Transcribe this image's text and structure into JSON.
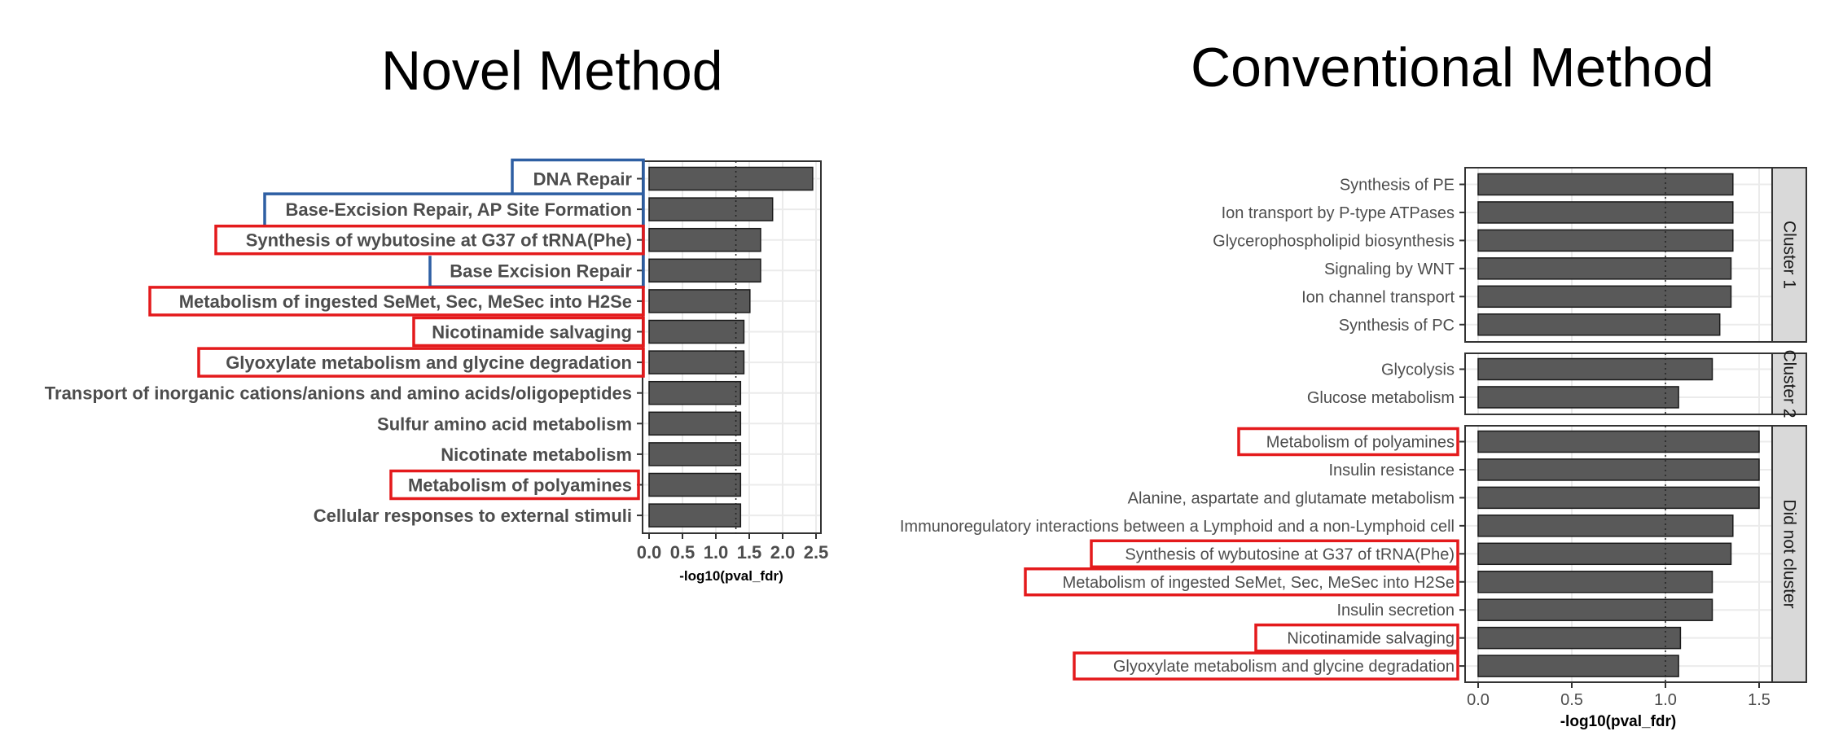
{
  "panels": {
    "left_title": "Novel Method",
    "right_title": "Conventional Method"
  },
  "chart_data": [
    {
      "type": "bar",
      "orientation": "horizontal",
      "title": "Novel Method",
      "xlabel": "-log10(pval_fdr)",
      "ylabel": "",
      "xlim": [
        0,
        2.6
      ],
      "xticks": [
        "0.0",
        "0.5",
        "1.0",
        "1.5",
        "2.0",
        "2.5"
      ],
      "reference_line": 1.3,
      "grid": true,
      "label_style": "bold",
      "categories": [
        "DNA Repair",
        "Base-Excision Repair, AP Site Formation",
        "Synthesis of wybutosine at G37 of tRNA(Phe)",
        "Base Excision Repair",
        "Metabolism of ingested SeMet, Sec, MeSec into H2Se",
        "Nicotinamide salvaging",
        "Glyoxylate metabolism and glycine degradation",
        "Transport of inorganic cations/anions and amino acids/oligopeptides",
        "Sulfur amino acid metabolism",
        "Nicotinate metabolism",
        "Metabolism of polyamines",
        "Cellular responses to external stimuli"
      ],
      "values": [
        2.45,
        1.85,
        1.67,
        1.67,
        1.51,
        1.42,
        1.42,
        1.37,
        1.37,
        1.37,
        1.37,
        1.37
      ],
      "highlights": {
        "red_boxes": [
          "Synthesis of wybutosine at G37 of tRNA(Phe)",
          "Metabolism of ingested SeMet, Sec, MeSec into H2Se",
          "Nicotinamide salvaging",
          "Glyoxylate metabolism and glycine degradation",
          "Metabolism of polyamines"
        ],
        "blue_boxes": [
          "DNA Repair",
          "Base-Excision Repair, AP Site Formation",
          "Base Excision Repair"
        ]
      }
    },
    {
      "type": "bar",
      "orientation": "horizontal",
      "title": "Conventional Method",
      "xlabel": "-log10(pval_fdr)",
      "ylabel": "",
      "xlim": [
        -0.07,
        1.58
      ],
      "xticks": [
        "0.0",
        "0.5",
        "1.0",
        "1.5"
      ],
      "reference_line": 1.0,
      "grid": true,
      "label_style": "normal",
      "facets": [
        {
          "name": "Cluster 1",
          "categories": [
            "Synthesis of PE",
            "Ion transport by P-type ATPases",
            "Glycerophospholipid biosynthesis",
            "Signaling by WNT",
            "Ion channel transport",
            "Synthesis of PC"
          ],
          "values": [
            1.36,
            1.36,
            1.36,
            1.35,
            1.35,
            1.29
          ]
        },
        {
          "name": "Cluster 2",
          "categories": [
            "Glycolysis",
            "Glucose metabolism"
          ],
          "values": [
            1.25,
            1.07
          ]
        },
        {
          "name": "Did not cluster",
          "categories": [
            "Metabolism of polyamines",
            "Insulin resistance",
            "Alanine, aspartate and glutamate metabolism",
            "Immunoregulatory interactions between a Lymphoid and a non-Lymphoid cell",
            "Synthesis of wybutosine at G37 of tRNA(Phe)",
            "Metabolism of ingested SeMet, Sec, MeSec into H2Se",
            "Insulin secretion",
            "Nicotinamide salvaging",
            "Glyoxylate metabolism and glycine degradation"
          ],
          "values": [
            1.5,
            1.5,
            1.5,
            1.36,
            1.35,
            1.25,
            1.25,
            1.08,
            1.07
          ]
        }
      ],
      "highlights": {
        "red_boxes": [
          "Metabolism of polyamines",
          "Synthesis of wybutosine at G37 of tRNA(Phe)",
          "Metabolism of ingested SeMet, Sec, MeSec into H2Se",
          "Nicotinamide salvaging",
          "Glyoxylate metabolism and glycine degradation"
        ]
      }
    }
  ],
  "colors": {
    "bar_fill": "#595959",
    "bar_stroke": "#1a1a1a",
    "panel_border": "#333333",
    "grid": "#ebebeb",
    "label_text": "#4d4d4d",
    "strip_fill": "#d9d9d9",
    "highlight_red": "#e41a1c",
    "highlight_blue": "#2e5fa3"
  }
}
